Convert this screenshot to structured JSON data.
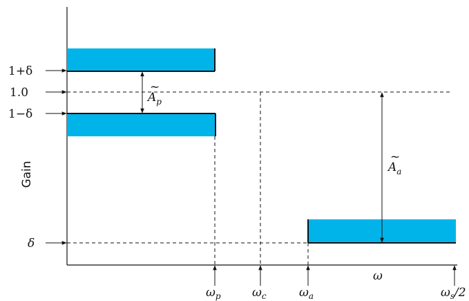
{
  "y_axis_title": "Gain",
  "x_axis_symbol": "ω",
  "levels": {
    "upper": "1+δ",
    "unity": "1.0",
    "lower": "1−δ",
    "stop": "δ"
  },
  "frequencies": {
    "passband_edge": {
      "base": "ω",
      "sub": "p"
    },
    "cutoff": {
      "base": "ω",
      "sub": "c"
    },
    "stopband_edge": {
      "base": "ω",
      "sub": "a"
    },
    "half_sampling": {
      "base": "ω",
      "sub": "s",
      "suffix": "/2"
    }
  },
  "annotations": {
    "passband_ripple": {
      "base": "A",
      "sub": "p",
      "accent": "~"
    },
    "stopband_attenuation": {
      "base": "A",
      "sub": "a",
      "accent": "~"
    }
  },
  "colors": {
    "band_fill": "#00b4ea",
    "ink": "#111111"
  }
}
